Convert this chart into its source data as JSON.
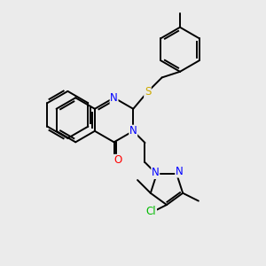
{
  "bg_color": "#ebebeb",
  "atom_colors": {
    "N": "#0000ff",
    "O": "#ff0000",
    "S": "#ccaa00",
    "Cl": "#00bb00",
    "C": "#000000"
  },
  "bond_color": "#000000",
  "bond_width": 1.4,
  "font_size": 8.5
}
